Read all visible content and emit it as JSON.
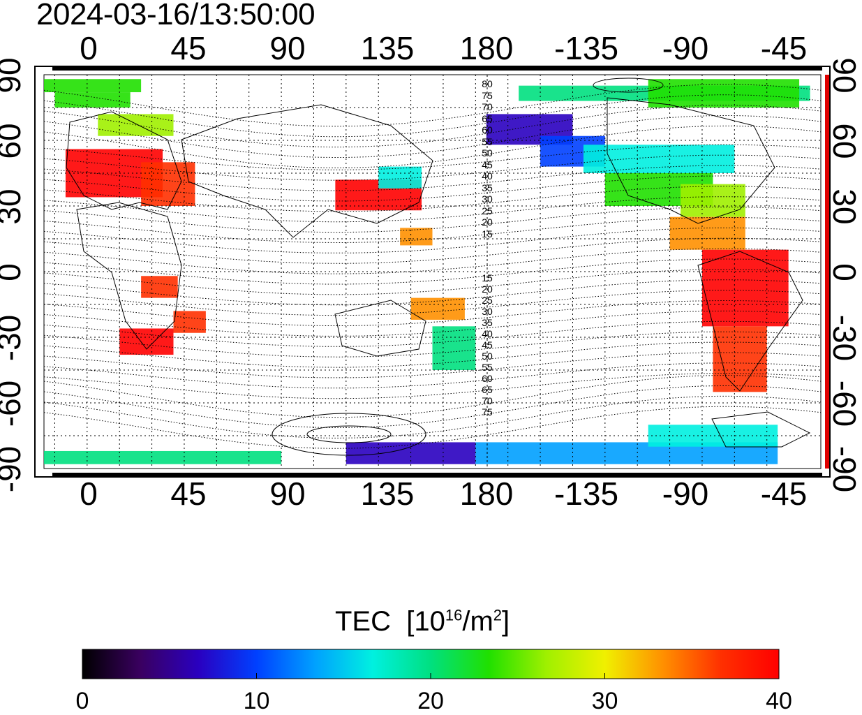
{
  "title": "2024-03-16/13:50:00",
  "map": {
    "longitude_ticks": [
      "0",
      "45",
      "90",
      "135",
      "180",
      "-135",
      "-90",
      "-45"
    ],
    "latitude_ticks": [
      "90",
      "60",
      "30",
      "0",
      "-30",
      "-60",
      "-90"
    ],
    "contour_labels_north": [
      "80",
      "75",
      "70",
      "65",
      "60",
      "55",
      "50",
      "45",
      "40",
      "35",
      "30",
      "25",
      "20",
      "15"
    ],
    "contour_labels_south": [
      "15",
      "20",
      "25",
      "30",
      "35",
      "40",
      "45",
      "50",
      "55",
      "60",
      "65",
      "70",
      "75"
    ]
  },
  "colorbar": {
    "title": "TEC",
    "unit_prefix": "[10",
    "unit_exp": "16",
    "unit_mid": "/m",
    "unit_exp2": "2",
    "unit_suffix": "]",
    "ticks": [
      "0",
      "10",
      "20",
      "30",
      "40"
    ],
    "min": 0,
    "max": 40,
    "colors": [
      "#000000",
      "#3a0060",
      "#2a00c0",
      "#0040ff",
      "#00a0ff",
      "#00f0e0",
      "#00e080",
      "#20e000",
      "#a0f000",
      "#f0f000",
      "#ff9000",
      "#ff3000",
      "#ff0000"
    ]
  }
}
